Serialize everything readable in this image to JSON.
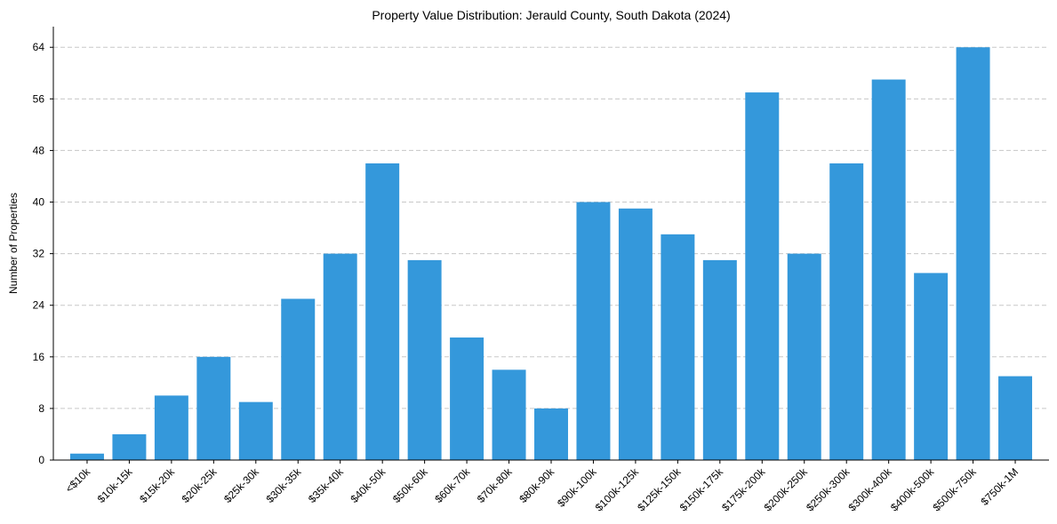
{
  "chart_data": {
    "type": "bar",
    "title": "Property Value Distribution: Jerauld County, South Dakota (2024)",
    "xlabel": "",
    "ylabel": "Number of Properties",
    "categories": [
      "<$10k",
      "$10k-15k",
      "$15k-20k",
      "$20k-25k",
      "$25k-30k",
      "$30k-35k",
      "$35k-40k",
      "$40k-50k",
      "$50k-60k",
      "$60k-70k",
      "$70k-80k",
      "$80k-90k",
      "$90k-100k",
      "$100k-125k",
      "$125k-150k",
      "$150k-175k",
      "$175k-200k",
      "$200k-250k",
      "$250k-300k",
      "$300k-400k",
      "$400k-500k",
      "$500k-750k",
      "$750k-1M"
    ],
    "values": [
      1,
      4,
      10,
      16,
      9,
      25,
      32,
      46,
      31,
      19,
      14,
      8,
      40,
      39,
      35,
      31,
      57,
      32,
      46,
      59,
      29,
      64,
      13
    ],
    "ylim": [
      0,
      67.2
    ],
    "yticks": [
      0,
      8,
      16,
      24,
      32,
      40,
      48,
      56,
      64
    ],
    "grid": "y-dashed",
    "bar_color": "#3498db"
  }
}
